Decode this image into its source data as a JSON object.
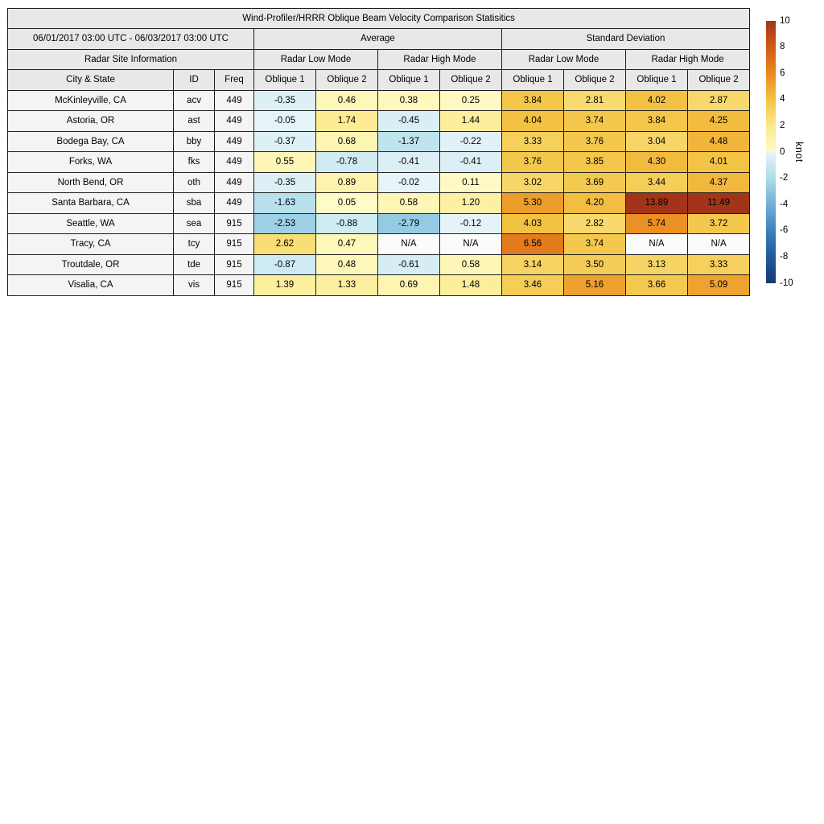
{
  "chart_data": {
    "type": "table",
    "title": "Wind-Profiler/HRRR Oblique Beam Velocity Comparison Statisitics",
    "date_range": "06/01/2017 03:00 UTC - 06/03/2017 03:00 UTC",
    "site_info_header": "Radar Site Information",
    "group_headers": [
      "Average",
      "Standard Deviation"
    ],
    "mode_headers": [
      "Radar Low Mode",
      "Radar High Mode"
    ],
    "column_headers": [
      "City & State",
      "ID",
      "Freq",
      "Oblique 1",
      "Oblique 2",
      "Oblique 1",
      "Oblique 2",
      "Oblique 1",
      "Oblique 2",
      "Oblique 1",
      "Oblique 2"
    ],
    "na_text": "N/A",
    "rows": [
      {
        "city": "McKinleyville, CA",
        "id": "acv",
        "freq": "449",
        "values": [
          -0.35,
          0.46,
          0.38,
          0.25,
          3.84,
          2.81,
          4.02,
          2.87
        ]
      },
      {
        "city": "Astoria, OR",
        "id": "ast",
        "freq": "449",
        "values": [
          -0.05,
          1.74,
          -0.45,
          1.44,
          4.04,
          3.74,
          3.84,
          4.25
        ]
      },
      {
        "city": "Bodega Bay, CA",
        "id": "bby",
        "freq": "449",
        "values": [
          -0.37,
          0.68,
          -1.37,
          -0.22,
          3.33,
          3.76,
          3.04,
          4.48
        ]
      },
      {
        "city": "Forks, WA",
        "id": "fks",
        "freq": "449",
        "values": [
          0.55,
          -0.78,
          -0.41,
          -0.41,
          3.76,
          3.85,
          4.3,
          4.01
        ]
      },
      {
        "city": "North Bend, OR",
        "id": "oth",
        "freq": "449",
        "values": [
          -0.35,
          0.89,
          -0.02,
          0.11,
          3.02,
          3.69,
          3.44,
          4.37
        ]
      },
      {
        "city": "Santa Barbara, CA",
        "id": "sba",
        "freq": "449",
        "values": [
          -1.63,
          0.05,
          0.58,
          1.2,
          5.3,
          4.2,
          13.89,
          11.49
        ]
      },
      {
        "city": "Seattle, WA",
        "id": "sea",
        "freq": "915",
        "values": [
          -2.53,
          -0.88,
          -2.79,
          -0.12,
          4.03,
          2.82,
          5.74,
          3.72
        ]
      },
      {
        "city": "Tracy, CA",
        "id": "tcy",
        "freq": "915",
        "values": [
          2.62,
          0.47,
          null,
          null,
          6.56,
          3.74,
          null,
          null
        ]
      },
      {
        "city": "Troutdale, OR",
        "id": "tde",
        "freq": "915",
        "values": [
          -0.87,
          0.48,
          -0.61,
          0.58,
          3.14,
          3.5,
          3.13,
          3.33
        ]
      },
      {
        "city": "Visalia, CA",
        "id": "vis",
        "freq": "915",
        "values": [
          1.39,
          1.33,
          0.69,
          1.48,
          3.46,
          5.16,
          3.66,
          5.09
        ]
      }
    ],
    "colorbar": {
      "label": "knot",
      "min": -10,
      "max": 10,
      "ticks": [
        10,
        8,
        6,
        4,
        2,
        0,
        -2,
        -4,
        -6,
        -8,
        -10
      ],
      "gradient_stops": [
        {
          "v": -10,
          "c": "#123a6d"
        },
        {
          "v": -8,
          "c": "#2257a0"
        },
        {
          "v": -6,
          "c": "#3b82bb"
        },
        {
          "v": -4,
          "c": "#6fb0d6"
        },
        {
          "v": -2,
          "c": "#aedcea"
        },
        {
          "v": -0.01,
          "c": "#e7f4f8"
        },
        {
          "v": 0.01,
          "c": "#fffbc8"
        },
        {
          "v": 2,
          "c": "#fbe98b"
        },
        {
          "v": 4,
          "c": "#f3c344"
        },
        {
          "v": 6,
          "c": "#e9881f"
        },
        {
          "v": 8,
          "c": "#d05a15"
        },
        {
          "v": 10,
          "c": "#a23419"
        }
      ]
    },
    "colors": {
      "header_bg": "#e8e8e8",
      "row_label_bg": "#f4f4f4",
      "na_bg": "#fbfbfb",
      "border": "#1c1c1c",
      "text": "#000000"
    }
  }
}
